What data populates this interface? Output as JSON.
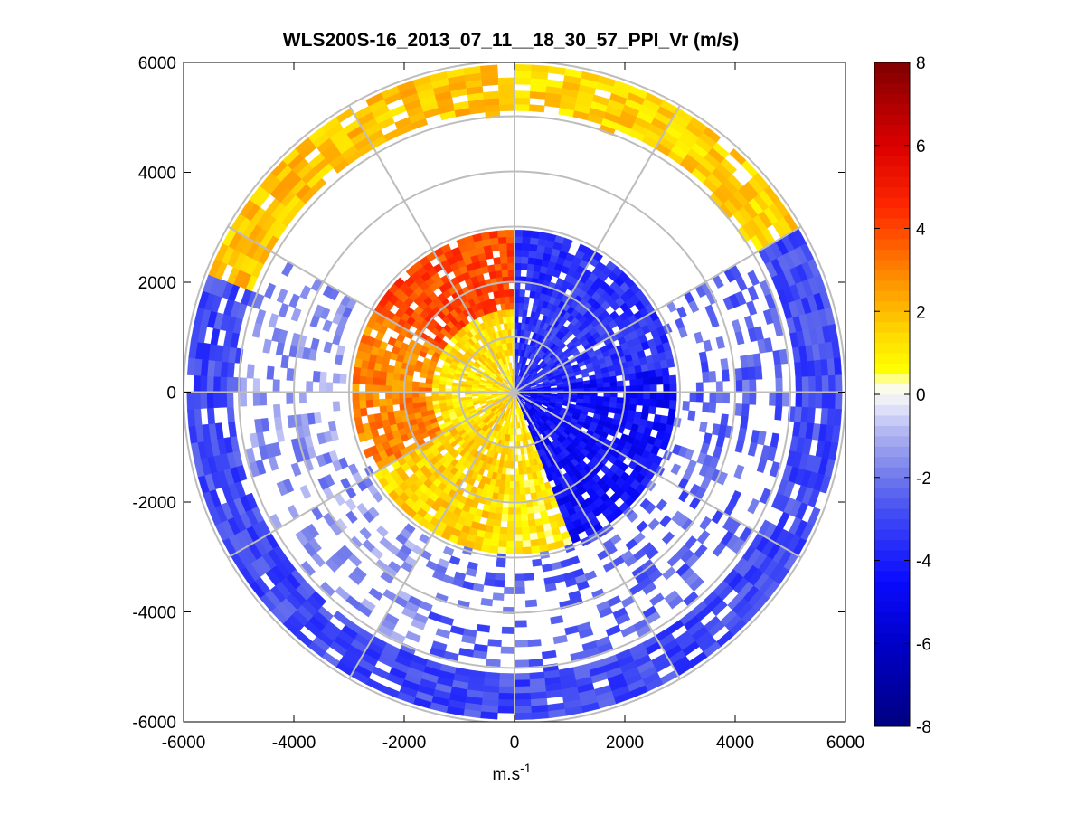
{
  "chart_data": {
    "type": "heatmap",
    "subtype": "polar-ppi",
    "title": "WLS200S-16_2013_07_11__18_30_57_PPI_Vr (m/s)",
    "xlabel_base": "m.s",
    "xlabel_exp": "-1",
    "ylabel": "",
    "xlim": [
      -6000,
      6000
    ],
    "ylim": [
      -6000,
      6000
    ],
    "xticks": [
      -6000,
      -4000,
      -2000,
      0,
      2000,
      4000,
      6000
    ],
    "yticks": [
      -6000,
      -4000,
      -2000,
      0,
      2000,
      4000,
      6000
    ],
    "xtick_labels": [
      "-6000",
      "-4000",
      "-2000",
      "0",
      "2000",
      "4000",
      "6000"
    ],
    "ytick_labels": [
      "-6000",
      "-4000",
      "-2000",
      "0",
      "2000",
      "4000",
      "6000"
    ],
    "range_rings": [
      1000,
      2000,
      3000,
      4000,
      5000,
      6000
    ],
    "spokes_deg": [
      0,
      30,
      60,
      90,
      120,
      150,
      180,
      210,
      240,
      270,
      300,
      330
    ],
    "max_range": 6000,
    "colorbar": {
      "min": -8,
      "max": 8,
      "ticks": [
        8,
        6,
        4,
        2,
        0,
        -2,
        -4,
        -6,
        -8
      ],
      "tick_labels": [
        "8",
        "6",
        "4",
        "2",
        "0",
        "-2",
        "-4",
        "-6",
        "-8"
      ],
      "colormap": "blue-white-yellow-red"
    },
    "field_description": "Radial velocity Vr: approaching (blue, about -2 to -5 m/s) over the east and south sectors, receding (yellow/orange/red, +1 to +5 m/s) over the north-west sector; sparse gates between range rings.",
    "sectors": [
      {
        "az_from": 0,
        "az_to": 80,
        "r_from": 0,
        "r_to": 3000,
        "vr": -3.5
      },
      {
        "az_from": 80,
        "az_to": 160,
        "r_from": 0,
        "r_to": 3000,
        "vr": -4.5
      },
      {
        "az_from": 160,
        "az_to": 185,
        "r_from": 0,
        "r_to": 3000,
        "vr": 1.0
      },
      {
        "az_from": 185,
        "az_to": 240,
        "r_from": 0,
        "r_to": 3000,
        "vr": 1.5
      },
      {
        "az_from": 240,
        "az_to": 300,
        "r_from": 1500,
        "r_to": 3000,
        "vr": 3.0
      },
      {
        "az_from": 300,
        "az_to": 360,
        "r_from": 1500,
        "r_to": 3000,
        "vr": 4.0
      },
      {
        "az_from": 240,
        "az_to": 360,
        "r_from": 0,
        "r_to": 1500,
        "vr": 1.2
      },
      {
        "az_from": 0,
        "az_to": 60,
        "r_from": 5000,
        "r_to": 6000,
        "vr": 1.5
      },
      {
        "az_from": 290,
        "az_to": 360,
        "r_from": 5000,
        "r_to": 6000,
        "vr": 1.8
      },
      {
        "az_from": 60,
        "az_to": 290,
        "r_from": 5000,
        "r_to": 6000,
        "vr": -3.0
      },
      {
        "az_from": 60,
        "az_to": 200,
        "r_from": 3000,
        "r_to": 5000,
        "vr": -2.5
      },
      {
        "az_from": 200,
        "az_to": 300,
        "r_from": 3000,
        "r_to": 5000,
        "vr": -1.5
      }
    ]
  }
}
